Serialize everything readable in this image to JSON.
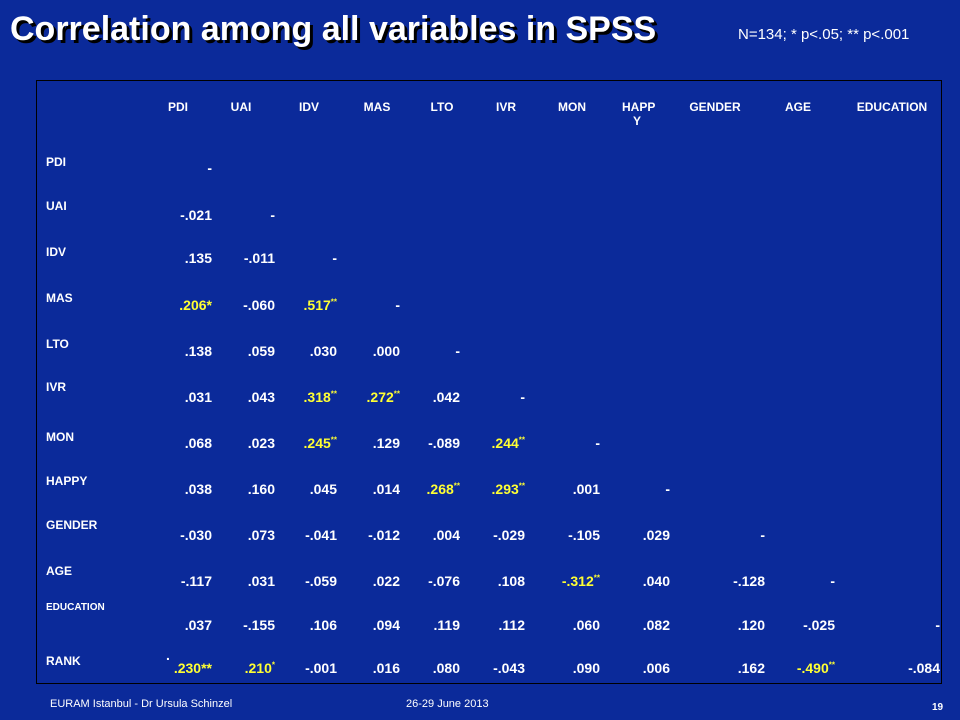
{
  "slide": {
    "title": "Correlation among all variables in SPSS",
    "note": "N=134; * p<.05; ** p<.001"
  },
  "table": {
    "columns": [
      "PDI",
      "UAI",
      "IDV",
      "MAS",
      "LTO",
      "IVR",
      "MON",
      "HAPP Y",
      "GENDER",
      "AGE",
      "EDUCATION"
    ],
    "rows": [
      {
        "label": "PDI",
        "cells": [
          {
            "v": "-",
            "hl": false,
            "sup": ""
          }
        ]
      },
      {
        "label": "UAI",
        "cells": [
          {
            "v": "-.021",
            "hl": false,
            "sup": ""
          },
          {
            "v": "-",
            "hl": false,
            "sup": ""
          }
        ]
      },
      {
        "label": "IDV",
        "cells": [
          {
            "v": ".135",
            "hl": false,
            "sup": ""
          },
          {
            "v": "-.011",
            "hl": false,
            "sup": ""
          },
          {
            "v": "-",
            "hl": false,
            "sup": ""
          }
        ]
      },
      {
        "label": "MAS",
        "cells": [
          {
            "v": ".206*",
            "hl": true,
            "sup": ""
          },
          {
            "v": "-.060",
            "hl": false,
            "sup": ""
          },
          {
            "v": ".517",
            "hl": true,
            "sup": "**"
          },
          {
            "v": "-",
            "hl": false,
            "sup": ""
          }
        ]
      },
      {
        "label": "LTO",
        "cells": [
          {
            "v": ".138",
            "hl": false,
            "sup": ""
          },
          {
            "v": ".059",
            "hl": false,
            "sup": ""
          },
          {
            "v": ".030",
            "hl": false,
            "sup": ""
          },
          {
            "v": ".000",
            "hl": false,
            "sup": ""
          },
          {
            "v": "-",
            "hl": false,
            "sup": ""
          }
        ]
      },
      {
        "label": "IVR",
        "cells": [
          {
            "v": ".031",
            "hl": false,
            "sup": ""
          },
          {
            "v": ".043",
            "hl": false,
            "sup": ""
          },
          {
            "v": ".318",
            "hl": true,
            "sup": "**"
          },
          {
            "v": ".272",
            "hl": true,
            "sup": "**"
          },
          {
            "v": ".042",
            "hl": false,
            "sup": ""
          },
          {
            "v": "-",
            "hl": false,
            "sup": ""
          }
        ]
      },
      {
        "label": "MON",
        "cells": [
          {
            "v": ".068",
            "hl": false,
            "sup": ""
          },
          {
            "v": ".023",
            "hl": false,
            "sup": ""
          },
          {
            "v": ".245",
            "hl": true,
            "sup": "**"
          },
          {
            "v": ".129",
            "hl": false,
            "sup": ""
          },
          {
            "v": "-.089",
            "hl": false,
            "sup": ""
          },
          {
            "v": ".244",
            "hl": true,
            "sup": "**"
          },
          {
            "v": "-",
            "hl": false,
            "sup": ""
          }
        ]
      },
      {
        "label": "HAPPY",
        "cells": [
          {
            "v": ".038",
            "hl": false,
            "sup": ""
          },
          {
            "v": ".160",
            "hl": false,
            "sup": ""
          },
          {
            "v": ".045",
            "hl": false,
            "sup": ""
          },
          {
            "v": ".014",
            "hl": false,
            "sup": ""
          },
          {
            "v": ".268",
            "hl": true,
            "sup": "**"
          },
          {
            "v": ".293",
            "hl": true,
            "sup": "**"
          },
          {
            "v": ".001",
            "hl": false,
            "sup": ""
          },
          {
            "v": "-",
            "hl": false,
            "sup": ""
          }
        ]
      },
      {
        "label": "GENDER",
        "cells": [
          {
            "v": "-.030",
            "hl": false,
            "sup": ""
          },
          {
            "v": ".073",
            "hl": false,
            "sup": ""
          },
          {
            "v": "-.041",
            "hl": false,
            "sup": ""
          },
          {
            "v": "-.012",
            "hl": false,
            "sup": ""
          },
          {
            "v": ".004",
            "hl": false,
            "sup": ""
          },
          {
            "v": "-.029",
            "hl": false,
            "sup": ""
          },
          {
            "v": "-.105",
            "hl": false,
            "sup": ""
          },
          {
            "v": ".029",
            "hl": false,
            "sup": ""
          },
          {
            "v": "-",
            "hl": false,
            "sup": ""
          }
        ]
      },
      {
        "label": "AGE",
        "cells": [
          {
            "v": "-.117",
            "hl": false,
            "sup": ""
          },
          {
            "v": ".031",
            "hl": false,
            "sup": ""
          },
          {
            "v": "-.059",
            "hl": false,
            "sup": ""
          },
          {
            "v": ".022",
            "hl": false,
            "sup": ""
          },
          {
            "v": "-.076",
            "hl": false,
            "sup": ""
          },
          {
            "v": ".108",
            "hl": false,
            "sup": ""
          },
          {
            "v": "-.312",
            "hl": true,
            "sup": "**"
          },
          {
            "v": ".040",
            "hl": false,
            "sup": ""
          },
          {
            "v": "-.128",
            "hl": false,
            "sup": ""
          },
          {
            "v": "-",
            "hl": false,
            "sup": ""
          }
        ]
      },
      {
        "label": "EDUCATION",
        "cells": [
          {
            "v": ".037",
            "hl": false,
            "sup": ""
          },
          {
            "v": "-.155",
            "hl": false,
            "sup": ""
          },
          {
            "v": ".106",
            "hl": false,
            "sup": ""
          },
          {
            "v": ".094",
            "hl": false,
            "sup": ""
          },
          {
            "v": ".119",
            "hl": false,
            "sup": ""
          },
          {
            "v": ".112",
            "hl": false,
            "sup": ""
          },
          {
            "v": ".060",
            "hl": false,
            "sup": ""
          },
          {
            "v": ".082",
            "hl": false,
            "sup": ""
          },
          {
            "v": ".120",
            "hl": false,
            "sup": ""
          },
          {
            "v": "-.025",
            "hl": false,
            "sup": ""
          },
          {
            "v": "-",
            "hl": false,
            "sup": ""
          }
        ]
      },
      {
        "label": "RANK",
        "cells": [
          {
            "v": ".230**",
            "hl": true,
            "sup": "",
            "pre": "."
          },
          {
            "v": ".210",
            "hl": true,
            "sup": "*"
          },
          {
            "v": "-.001",
            "hl": false,
            "sup": ""
          },
          {
            "v": ".016",
            "hl": false,
            "sup": ""
          },
          {
            "v": ".080",
            "hl": false,
            "sup": ""
          },
          {
            "v": "-.043",
            "hl": false,
            "sup": ""
          },
          {
            "v": ".090",
            "hl": false,
            "sup": ""
          },
          {
            "v": ".006",
            "hl": false,
            "sup": ""
          },
          {
            "v": ".162",
            "hl": false,
            "sup": ""
          },
          {
            "v": "-.490",
            "hl": true,
            "sup": "**"
          },
          {
            "v": "-.084",
            "hl": false,
            "sup": ""
          }
        ]
      }
    ]
  },
  "footer": {
    "left": "EURAM Istanbul - Dr Ursula Schinzel",
    "date": "26-29 June 2013",
    "page": "19"
  },
  "colors": {
    "background": "#0b2a9a",
    "highlight": "#ffff33",
    "text": "#ffffff"
  }
}
